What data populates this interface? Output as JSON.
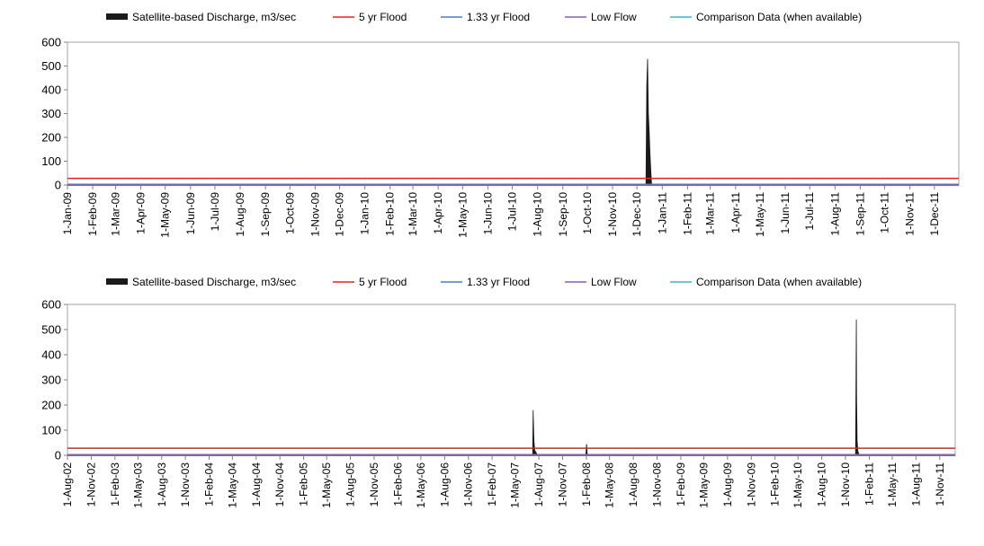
{
  "legend": [
    {
      "label": "Satellite-based Discharge, m3/sec",
      "color": "#1a1a1a",
      "kind": "area"
    },
    {
      "label": "5 yr Flood",
      "color": "#e8231f",
      "kind": "line"
    },
    {
      "label": "1.33 yr Flood",
      "color": "#4a7ec4",
      "kind": "line"
    },
    {
      "label": "Low Flow",
      "color": "#8b5fb0",
      "kind": "line"
    },
    {
      "label": "Comparison Data (when available)",
      "color": "#3fb3c9",
      "kind": "line"
    }
  ],
  "chart_data": [
    {
      "type": "area",
      "title": "",
      "xlabel": "",
      "ylabel": "",
      "x_range": [
        "2009-01-01",
        "2011-12-31"
      ],
      "ylim": [
        0,
        600
      ],
      "y_ticks": [
        0,
        100,
        200,
        300,
        400,
        500,
        600
      ],
      "grid": false,
      "legend_position": "top",
      "x_tick_labels": [
        "1-Jan-09",
        "1-Feb-09",
        "1-Mar-09",
        "1-Apr-09",
        "1-May-09",
        "1-Jun-09",
        "1-Jul-09",
        "1-Aug-09",
        "1-Sep-09",
        "1-Oct-09",
        "1-Nov-09",
        "1-Dec-09",
        "1-Jan-10",
        "1-Feb-10",
        "1-Mar-10",
        "1-Apr-10",
        "1-May-10",
        "1-Jun-10",
        "1-Jul-10",
        "1-Aug-10",
        "1-Sep-10",
        "1-Oct-10",
        "1-Nov-10",
        "1-Dec-10",
        "1-Jan-11",
        "1-Feb-11",
        "1-Mar-11",
        "1-Apr-11",
        "1-May-11",
        "1-Jun-11",
        "1-Jul-11",
        "1-Aug-11",
        "1-Sep-11",
        "1-Oct-11",
        "1-Nov-11",
        "1-Dec-11"
      ],
      "series": [
        {
          "name": "Satellite-based Discharge, m3/sec",
          "x": [
            "2009-01-01",
            "2010-12-12",
            "2010-12-13",
            "2010-12-14",
            "2010-12-15",
            "2010-12-16",
            "2010-12-17",
            "2010-12-18",
            "2010-12-19",
            "2011-12-31"
          ],
          "y": [
            0,
            0,
            420,
            530,
            300,
            225,
            130,
            60,
            0,
            0
          ]
        },
        {
          "name": "5 yr Flood",
          "constant": 28
        },
        {
          "name": "1.33 yr Flood",
          "constant": 2
        },
        {
          "name": "Low Flow",
          "constant": 0
        },
        {
          "name": "Comparison Data (when available)",
          "x": [],
          "y": []
        }
      ]
    },
    {
      "type": "area",
      "title": "",
      "xlabel": "",
      "ylabel": "",
      "x_range": [
        "2002-08-01",
        "2011-12-31"
      ],
      "ylim": [
        0,
        600
      ],
      "y_ticks": [
        0,
        100,
        200,
        300,
        400,
        500,
        600
      ],
      "grid": false,
      "legend_position": "top",
      "x_tick_labels": [
        "1-Aug-02",
        "1-Nov-02",
        "1-Feb-03",
        "1-May-03",
        "1-Aug-03",
        "1-Nov-03",
        "1-Feb-04",
        "1-May-04",
        "1-Aug-04",
        "1-Nov-04",
        "1-Feb-05",
        "1-May-05",
        "1-Aug-05",
        "1-Nov-05",
        "1-Feb-06",
        "1-May-06",
        "1-Aug-06",
        "1-Nov-06",
        "1-Feb-07",
        "1-May-07",
        "1-Aug-07",
        "1-Nov-07",
        "1-Feb-08",
        "1-May-08",
        "1-Aug-08",
        "1-Nov-08",
        "1-Feb-09",
        "1-May-09",
        "1-Aug-09",
        "1-Nov-09",
        "1-Feb-10",
        "1-May-10",
        "1-Aug-10",
        "1-Nov-10",
        "1-Feb-11",
        "1-May-11",
        "1-Aug-11",
        "1-Nov-11"
      ],
      "series": [
        {
          "name": "Satellite-based Discharge, m3/sec",
          "x": [
            "2002-08-01",
            "2007-07-08",
            "2007-07-10",
            "2007-07-13",
            "2007-07-16",
            "2007-07-22",
            "2007-07-26",
            "2008-01-30",
            "2008-02-02",
            "2008-02-05",
            "2010-12-10",
            "2010-12-13",
            "2010-12-14",
            "2010-12-16",
            "2010-12-19",
            "2010-12-25",
            "2011-12-31"
          ],
          "y": [
            0,
            0,
            180,
            60,
            20,
            10,
            0,
            0,
            45,
            0,
            0,
            540,
            230,
            60,
            15,
            0,
            0
          ]
        },
        {
          "name": "5 yr Flood",
          "constant": 28
        },
        {
          "name": "1.33 yr Flood",
          "constant": 2
        },
        {
          "name": "Low Flow",
          "constant": 0
        },
        {
          "name": "Comparison Data (when available)",
          "x": [],
          "y": []
        }
      ]
    }
  ]
}
